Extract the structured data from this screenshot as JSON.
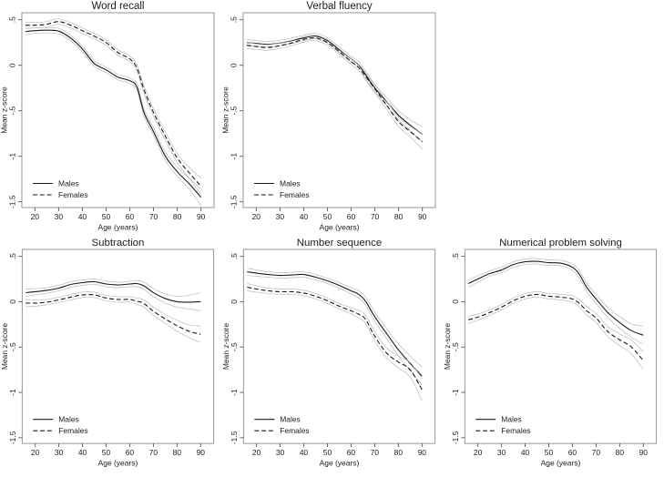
{
  "figure": {
    "background": "#ffffff",
    "line_color": "#1a1a1a",
    "ci_color": "#b9b9b9",
    "box_color": "#979797",
    "tick_color": "#555555",
    "text_color": "#1c1c1c",
    "legend_labels": [
      "Males",
      "Females"
    ],
    "axis": {
      "xlabel": "Age (years)",
      "ylabel": "Mean z-score",
      "x_ticks": [
        20,
        30,
        40,
        50,
        60,
        70,
        80,
        90
      ],
      "y_ticks": [
        0.5,
        0,
        -0.5,
        -1,
        -1.5
      ],
      "y_tick_labels": [
        ".5",
        "0",
        "-.5",
        "-1",
        "-1.5"
      ],
      "xlim": [
        14.5,
        95.5
      ],
      "ylim": [
        -1.563,
        0.577
      ]
    }
  },
  "chart_data": [
    {
      "type": "line",
      "title": "Word recall",
      "xlabel": "Age (years)",
      "ylabel": "Mean z-score",
      "x": [
        16,
        20,
        25,
        30,
        35,
        40,
        45,
        50,
        55,
        60,
        63,
        66,
        70,
        75,
        80,
        85,
        90
      ],
      "xlim": [
        14.5,
        95.5
      ],
      "ylim": [
        -1.563,
        0.577
      ],
      "grid": false,
      "legend_position": "bottom-left-inside",
      "series": [
        {
          "name": "Males",
          "style": "solid",
          "values": [
            0.37,
            0.38,
            0.385,
            0.375,
            0.3,
            0.18,
            0.02,
            -0.05,
            -0.13,
            -0.17,
            -0.24,
            -0.52,
            -0.73,
            -1.0,
            -1.17,
            -1.3,
            -1.45
          ],
          "ci": [
            0.035,
            0.03,
            0.03,
            0.03,
            0.03,
            0.03,
            0.03,
            0.03,
            0.03,
            0.03,
            0.035,
            0.04,
            0.04,
            0.045,
            0.05,
            0.06,
            0.09
          ]
        },
        {
          "name": "Females",
          "style": "dashed",
          "values": [
            0.44,
            0.44,
            0.45,
            0.48,
            0.44,
            0.38,
            0.32,
            0.25,
            0.14,
            0.07,
            -0.03,
            -0.27,
            -0.52,
            -0.78,
            -1.02,
            -1.18,
            -1.33
          ],
          "ci": [
            0.035,
            0.03,
            0.03,
            0.03,
            0.03,
            0.03,
            0.03,
            0.03,
            0.03,
            0.03,
            0.035,
            0.04,
            0.04,
            0.045,
            0.05,
            0.06,
            0.09
          ]
        }
      ]
    },
    {
      "type": "line",
      "title": "Verbal fluency",
      "xlabel": "Age (years)",
      "ylabel": "Mean z-score",
      "x": [
        16,
        20,
        25,
        30,
        35,
        40,
        45,
        50,
        55,
        60,
        63,
        66,
        70,
        75,
        80,
        85,
        90
      ],
      "xlim": [
        14.5,
        95.5
      ],
      "ylim": [
        -1.563,
        0.577
      ],
      "grid": false,
      "legend_position": "bottom-left-inside",
      "series": [
        {
          "name": "Males",
          "style": "solid",
          "values": [
            0.25,
            0.24,
            0.23,
            0.245,
            0.27,
            0.3,
            0.32,
            0.27,
            0.17,
            0.07,
            0.01,
            -0.1,
            -0.25,
            -0.4,
            -0.55,
            -0.66,
            -0.76
          ],
          "ci": [
            0.035,
            0.03,
            0.03,
            0.03,
            0.03,
            0.03,
            0.03,
            0.03,
            0.03,
            0.03,
            0.035,
            0.04,
            0.04,
            0.045,
            0.05,
            0.06,
            0.08
          ]
        },
        {
          "name": "Females",
          "style": "dashed",
          "values": [
            0.22,
            0.205,
            0.195,
            0.215,
            0.245,
            0.285,
            0.3,
            0.25,
            0.15,
            0.04,
            -0.02,
            -0.12,
            -0.26,
            -0.44,
            -0.62,
            -0.73,
            -0.84
          ],
          "ci": [
            0.035,
            0.03,
            0.03,
            0.03,
            0.03,
            0.03,
            0.03,
            0.03,
            0.03,
            0.03,
            0.035,
            0.04,
            0.04,
            0.045,
            0.05,
            0.06,
            0.08
          ]
        }
      ]
    },
    {
      "type": "line",
      "title": "Subtraction",
      "xlabel": "Age (years)",
      "ylabel": "Mean z-score",
      "x": [
        16,
        20,
        25,
        30,
        35,
        40,
        45,
        50,
        55,
        60,
        63,
        66,
        70,
        75,
        80,
        85,
        90
      ],
      "xlim": [
        14.5,
        95.5
      ],
      "ylim": [
        -1.563,
        0.577
      ],
      "grid": false,
      "legend_position": "bottom-left-inside",
      "series": [
        {
          "name": "Males",
          "style": "solid",
          "values": [
            0.1,
            0.11,
            0.125,
            0.15,
            0.19,
            0.21,
            0.22,
            0.195,
            0.185,
            0.195,
            0.2,
            0.175,
            0.1,
            0.035,
            0.0,
            -0.005,
            0.0
          ],
          "ci": [
            0.04,
            0.035,
            0.03,
            0.03,
            0.03,
            0.03,
            0.03,
            0.03,
            0.03,
            0.03,
            0.035,
            0.04,
            0.045,
            0.05,
            0.06,
            0.075,
            0.1
          ]
        },
        {
          "name": "Females",
          "style": "dashed",
          "values": [
            -0.015,
            -0.015,
            -0.005,
            0.02,
            0.05,
            0.075,
            0.075,
            0.04,
            0.025,
            0.025,
            0.005,
            -0.02,
            -0.105,
            -0.19,
            -0.265,
            -0.325,
            -0.36
          ],
          "ci": [
            0.04,
            0.035,
            0.03,
            0.03,
            0.03,
            0.03,
            0.03,
            0.03,
            0.03,
            0.03,
            0.035,
            0.04,
            0.045,
            0.05,
            0.06,
            0.07,
            0.09
          ]
        }
      ]
    },
    {
      "type": "line",
      "title": "Number sequence",
      "xlabel": "Age (years)",
      "ylabel": "Mean z-score",
      "x": [
        16,
        20,
        25,
        30,
        35,
        40,
        45,
        50,
        55,
        60,
        63,
        66,
        70,
        75,
        80,
        85,
        90
      ],
      "xlim": [
        14.5,
        95.5
      ],
      "ylim": [
        -1.563,
        0.577
      ],
      "grid": false,
      "legend_position": "bottom-left-inside",
      "series": [
        {
          "name": "Males",
          "style": "solid",
          "values": [
            0.33,
            0.315,
            0.3,
            0.29,
            0.295,
            0.3,
            0.27,
            0.23,
            0.18,
            0.12,
            0.085,
            0.01,
            -0.165,
            -0.35,
            -0.53,
            -0.68,
            -0.82
          ],
          "ci": [
            0.04,
            0.035,
            0.03,
            0.03,
            0.03,
            0.03,
            0.03,
            0.03,
            0.03,
            0.035,
            0.04,
            0.045,
            0.05,
            0.055,
            0.065,
            0.08,
            0.1
          ]
        },
        {
          "name": "Females",
          "style": "dashed",
          "values": [
            0.16,
            0.14,
            0.12,
            0.11,
            0.11,
            0.095,
            0.06,
            0.01,
            -0.05,
            -0.1,
            -0.135,
            -0.19,
            -0.38,
            -0.565,
            -0.665,
            -0.75,
            -0.97
          ],
          "ci": [
            0.04,
            0.035,
            0.03,
            0.03,
            0.03,
            0.03,
            0.03,
            0.03,
            0.03,
            0.035,
            0.04,
            0.045,
            0.05,
            0.055,
            0.065,
            0.08,
            0.12
          ]
        }
      ]
    },
    {
      "type": "line",
      "title": "Numerical problem solving",
      "xlabel": "Age (years)",
      "ylabel": "Mean z-score",
      "x": [
        16,
        20,
        25,
        30,
        35,
        40,
        45,
        50,
        55,
        60,
        63,
        66,
        70,
        75,
        80,
        85,
        90
      ],
      "xlim": [
        14.5,
        95.5
      ],
      "ylim": [
        -1.563,
        0.577
      ],
      "grid": false,
      "legend_position": "bottom-left-inside",
      "series": [
        {
          "name": "Males",
          "style": "solid",
          "values": [
            0.2,
            0.25,
            0.31,
            0.35,
            0.41,
            0.44,
            0.445,
            0.43,
            0.425,
            0.38,
            0.3,
            0.16,
            0.03,
            -0.12,
            -0.23,
            -0.32,
            -0.37
          ],
          "ci": [
            0.04,
            0.035,
            0.03,
            0.03,
            0.03,
            0.03,
            0.03,
            0.03,
            0.03,
            0.035,
            0.04,
            0.045,
            0.05,
            0.055,
            0.065,
            0.075,
            0.1
          ]
        },
        {
          "name": "Females",
          "style": "dashed",
          "values": [
            -0.2,
            -0.17,
            -0.12,
            -0.06,
            0.01,
            0.06,
            0.08,
            0.06,
            0.05,
            0.03,
            -0.02,
            -0.1,
            -0.18,
            -0.33,
            -0.42,
            -0.5,
            -0.65
          ],
          "ci": [
            0.04,
            0.035,
            0.03,
            0.03,
            0.03,
            0.03,
            0.03,
            0.03,
            0.03,
            0.035,
            0.04,
            0.045,
            0.05,
            0.055,
            0.065,
            0.075,
            0.1
          ]
        }
      ]
    }
  ]
}
